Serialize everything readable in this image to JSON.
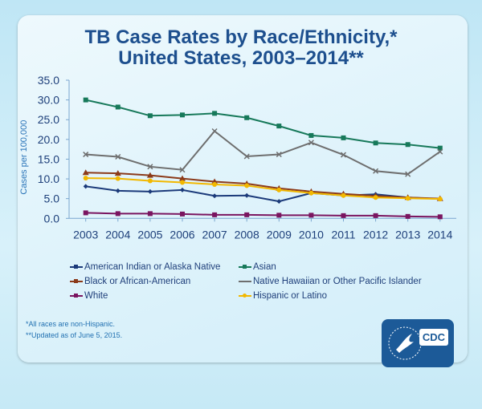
{
  "chart_data": {
    "type": "line",
    "title": [
      "TB Case Rates by Race/Ethnicity,*",
      "United States, 2003–2014**"
    ],
    "ylabel": "Cases per 100,000",
    "xlabel": "",
    "ylim": [
      0,
      35
    ],
    "yticks": [
      "0.0",
      "5.0",
      "10.0",
      "15.0",
      "20.0",
      "25.0",
      "30.0",
      "35.0"
    ],
    "categories": [
      "2003",
      "2004",
      "2005",
      "2006",
      "2007",
      "2008",
      "2009",
      "2010",
      "2011",
      "2012",
      "2013",
      "2014"
    ],
    "grid": false,
    "legend_placement": "bottom",
    "series": [
      {
        "name": "American Indian or Alaska Native",
        "color": "#1b3a7a",
        "marker": "diamond",
        "values": [
          8.1,
          7.0,
          6.8,
          7.2,
          5.7,
          5.8,
          4.3,
          6.4,
          5.8,
          6.1,
          5.3,
          4.9
        ]
      },
      {
        "name": "Asian",
        "color": "#17795a",
        "marker": "square",
        "values": [
          30.0,
          28.2,
          26.0,
          26.2,
          26.6,
          25.5,
          23.4,
          21.0,
          20.4,
          19.1,
          18.7,
          17.8
        ]
      },
      {
        "name": "Black or African-American",
        "color": "#8b3a1a",
        "marker": "triangle",
        "values": [
          11.6,
          11.4,
          10.9,
          10.1,
          9.3,
          8.8,
          7.6,
          6.8,
          6.2,
          5.7,
          5.3,
          5.0
        ]
      },
      {
        "name": "Native Hawaiian or Other Pacific Islander",
        "color": "#6e6e6e",
        "marker": "x",
        "values": [
          16.2,
          15.6,
          13.1,
          12.3,
          22.1,
          15.7,
          16.2,
          19.2,
          16.1,
          12.0,
          11.2,
          16.9
        ]
      },
      {
        "name": "White",
        "color": "#7a1560",
        "marker": "square",
        "values": [
          1.4,
          1.2,
          1.2,
          1.1,
          0.9,
          0.9,
          0.8,
          0.8,
          0.7,
          0.7,
          0.5,
          0.4
        ]
      },
      {
        "name": "Hispanic or Latino",
        "color": "#f2b800",
        "marker": "circle",
        "values": [
          10.2,
          10.1,
          9.5,
          9.1,
          8.6,
          8.3,
          7.2,
          6.4,
          5.8,
          5.3,
          5.1,
          4.9
        ]
      }
    ]
  },
  "notes": [
    "*All races are non-Hispanic.",
    "**Updated as of June 5, 2015."
  ],
  "logo": {
    "text": "CDC"
  }
}
